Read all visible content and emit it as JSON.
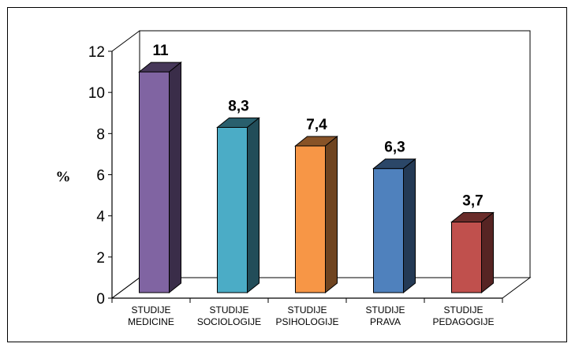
{
  "chart_data": {
    "type": "bar",
    "ylabel": "%",
    "ylim": [
      0,
      12
    ],
    "yticks": [
      "0",
      "2",
      "4",
      "6",
      "8",
      "10",
      "12"
    ],
    "categories": [
      [
        "STUDIJE",
        "MEDICINE"
      ],
      [
        "STUDIJE",
        "SOCIOLOGIJE"
      ],
      [
        "STUDIJE",
        "PSIHOLOGIJE"
      ],
      [
        "STUDIJE",
        "PRAVA"
      ],
      [
        "STUDIJE",
        "PEDAGOGIJE"
      ]
    ],
    "values": [
      11,
      8.3,
      7.4,
      6.3,
      3.7
    ],
    "value_labels": [
      "11",
      "8,3",
      "7,4",
      "6,3",
      "3,7"
    ],
    "colors": [
      "#8064a2",
      "#4bacc6",
      "#f79646",
      "#4f81bd",
      "#c0504d"
    ],
    "grid": false,
    "legend": "none"
  }
}
